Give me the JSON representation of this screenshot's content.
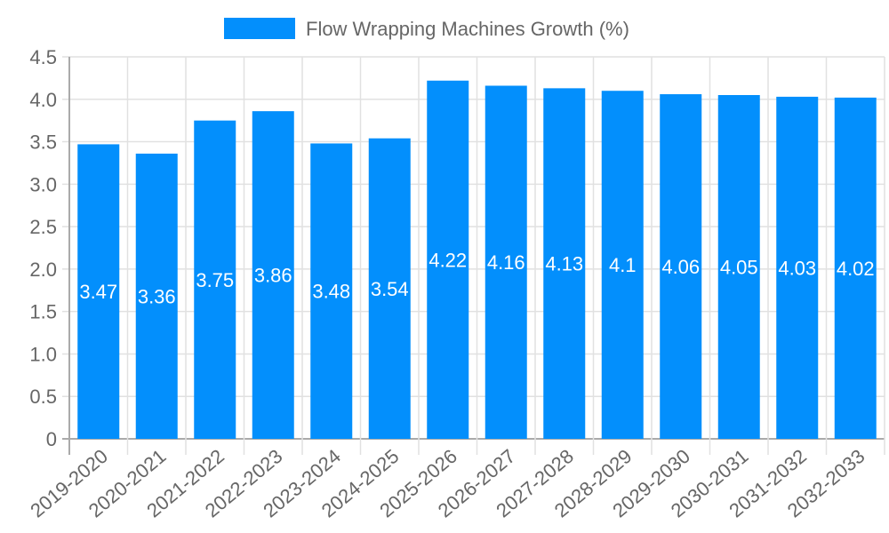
{
  "legend": {
    "label": "Flow Wrapping Machines Growth (%)",
    "color": "#038ffc"
  },
  "chart_data": {
    "type": "bar",
    "title": "",
    "xlabel": "",
    "ylabel": "",
    "ylim": [
      0,
      4.5
    ],
    "yticks": [
      0,
      0.5,
      1.0,
      1.5,
      2.0,
      2.5,
      3.0,
      3.5,
      4.0,
      4.5
    ],
    "ytick_labels": [
      "0",
      "0.5",
      "1.0",
      "1.5",
      "2.0",
      "2.5",
      "3.0",
      "3.5",
      "4.0",
      "4.5"
    ],
    "grid": true,
    "legend_position": "top",
    "categories": [
      "2019-2020",
      "2020-2021",
      "2021-2022",
      "2022-2023",
      "2023-2024",
      "2024-2025",
      "2025-2026",
      "2026-2027",
      "2027-2028",
      "2028-2029",
      "2029-2030",
      "2030-2031",
      "2031-2032",
      "2032-2033"
    ],
    "series": [
      {
        "name": "Flow Wrapping Machines Growth (%)",
        "color": "#038ffc",
        "values": [
          3.47,
          3.36,
          3.75,
          3.86,
          3.48,
          3.54,
          4.22,
          4.16,
          4.13,
          4.1,
          4.06,
          4.05,
          4.03,
          4.02
        ],
        "labels": [
          "3.47",
          "3.36",
          "3.75",
          "3.86",
          "3.48",
          "3.54",
          "4.22",
          "4.16",
          "4.13",
          "4.1",
          "4.06",
          "4.05",
          "4.03",
          "4.02"
        ]
      }
    ]
  }
}
